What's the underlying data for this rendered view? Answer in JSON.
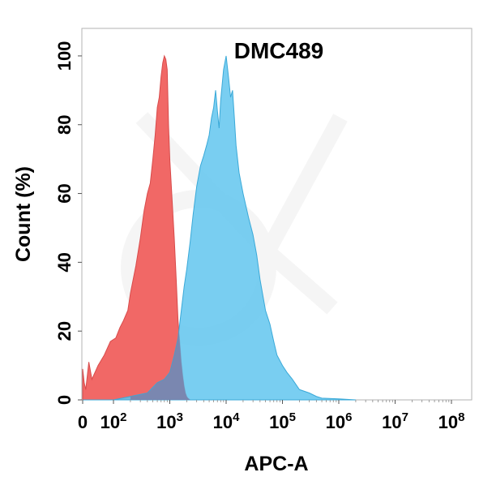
{
  "chart_data": {
    "type": "area",
    "title": "DMC489",
    "xlabel": "APC-A",
    "ylabel": "Count  (%)",
    "x_scale": "log",
    "xlim": [
      0,
      100000000
    ],
    "ylim": [
      0,
      108
    ],
    "x_ticks": [
      {
        "value": 0,
        "base": "0",
        "exp": ""
      },
      {
        "value": 100,
        "base": "10",
        "exp": "2"
      },
      {
        "value": 1000,
        "base": "10",
        "exp": "3"
      },
      {
        "value": 10000,
        "base": "10",
        "exp": "4"
      },
      {
        "value": 100000,
        "base": "10",
        "exp": "5"
      },
      {
        "value": 1000000,
        "base": "10",
        "exp": "6"
      },
      {
        "value": 10000000,
        "base": "10",
        "exp": "7"
      },
      {
        "value": 100000000,
        "base": "10",
        "exp": "8"
      }
    ],
    "y_ticks": [
      0,
      20,
      40,
      60,
      80,
      100
    ],
    "grid": false,
    "legend": "none",
    "series": [
      {
        "color": "#f25f5f",
        "fill": "#f0605e",
        "stroke": "#d84b4b",
        "x": [
          0,
          5,
          10,
          20,
          30,
          50,
          70,
          90,
          110,
          130,
          150,
          180,
          200,
          250,
          300,
          350,
          400,
          450,
          500,
          550,
          600,
          650,
          700,
          750,
          800,
          850,
          900,
          950,
          1000,
          1100,
          1200,
          1300,
          1400,
          1500,
          1600,
          1700,
          1800,
          1900,
          2000,
          2100,
          2300
        ],
        "y": [
          9,
          5,
          3,
          11,
          6,
          10,
          13,
          17,
          18,
          21,
          23,
          26,
          31,
          39,
          47,
          55,
          60,
          63,
          70,
          77,
          85,
          88,
          94,
          98,
          100,
          99,
          96,
          80,
          70,
          58,
          47,
          35,
          23,
          17,
          11,
          7,
          4,
          2,
          1,
          0.5,
          0
        ]
      },
      {
        "color": "#5bc5ee",
        "fill": "#61c6ef",
        "stroke": "#3aa9d8",
        "x": [
          0,
          50,
          100,
          200,
          400,
          600,
          800,
          1000,
          1200,
          1400,
          1600,
          1800,
          2000,
          2300,
          2600,
          3000,
          3500,
          4000,
          4500,
          5000,
          5500,
          6000,
          6500,
          7000,
          7500,
          8000,
          9000,
          10000,
          11000,
          12000,
          13000,
          14000,
          15000,
          17000,
          20000,
          25000,
          30000,
          35000,
          40000,
          50000,
          60000,
          70000,
          80000,
          100000,
          120000,
          150000,
          200000,
          300000,
          400000,
          500000,
          1000000,
          2000000
        ],
        "y": [
          0,
          0,
          0,
          1,
          2,
          5,
          6,
          8,
          13,
          18,
          26,
          33,
          38,
          46,
          54,
          62,
          68,
          71,
          74,
          77,
          82,
          85,
          90,
          84,
          79,
          87,
          96,
          100,
          94,
          88,
          90,
          82,
          74,
          66,
          60,
          53,
          48,
          42,
          35,
          26,
          22,
          17,
          13,
          10,
          8,
          6,
          3,
          2,
          1,
          0.5,
          0.3,
          0
        ]
      }
    ]
  }
}
